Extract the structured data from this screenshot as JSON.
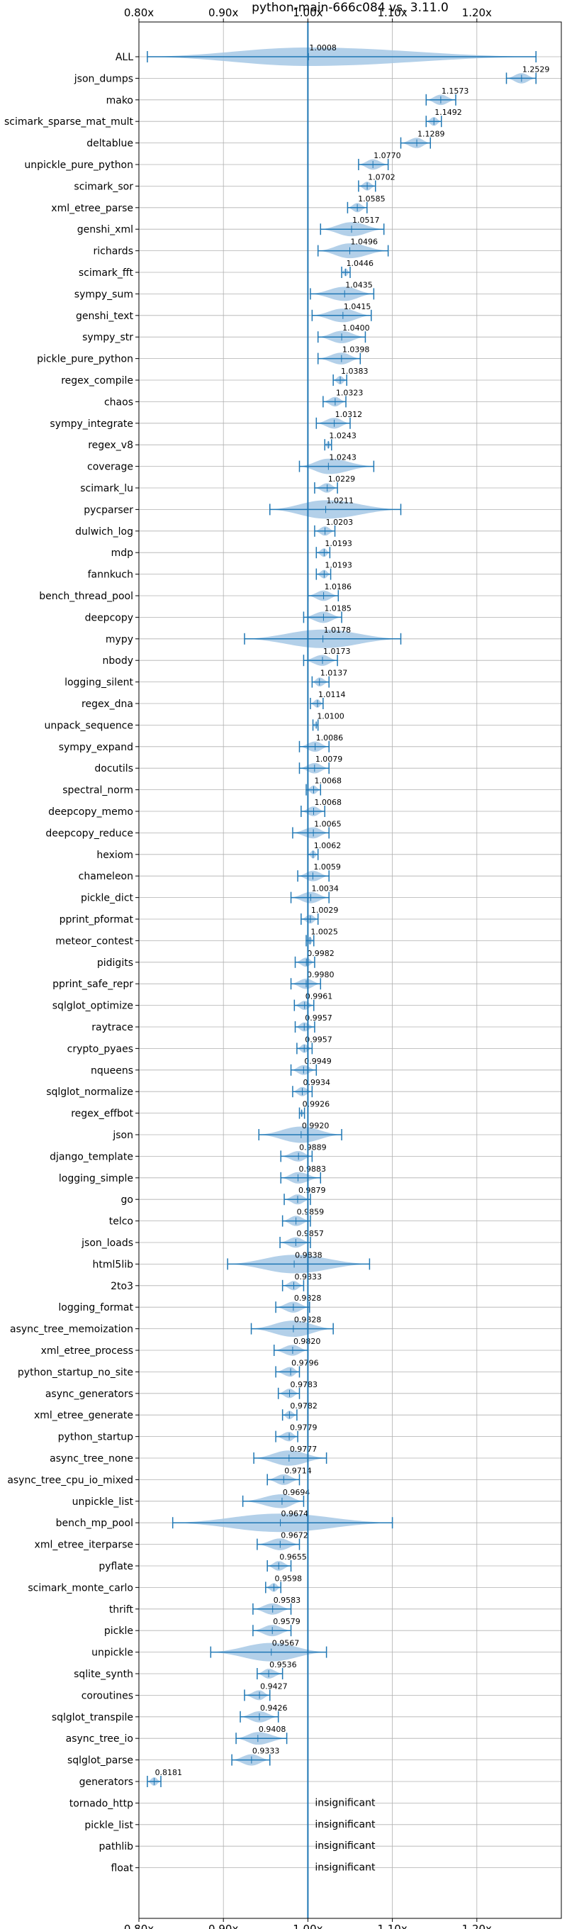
{
  "chart_data": {
    "type": "violin",
    "title": "python-main-666c084 vs. 3.11.0",
    "xlim": [
      0.8,
      1.3
    ],
    "x_ticks": [
      0.8,
      0.9,
      1.0,
      1.1,
      1.2
    ],
    "x_tick_labels": [
      "0.80x",
      "0.90x",
      "1.00x",
      "1.10x",
      "1.20x"
    ],
    "reference_x": 1.0,
    "grid": true,
    "insignificant_label": "insignificant",
    "benchmarks": [
      {
        "name": "ALL",
        "median": 1.0008,
        "min": 0.81,
        "max": 1.27,
        "significant": true
      },
      {
        "name": "json_dumps",
        "median": 1.2529,
        "min": 1.235,
        "max": 1.27,
        "significant": true
      },
      {
        "name": "mako",
        "median": 1.1573,
        "min": 1.14,
        "max": 1.175,
        "significant": true
      },
      {
        "name": "scimark_sparse_mat_mult",
        "median": 1.1492,
        "min": 1.14,
        "max": 1.158,
        "significant": true
      },
      {
        "name": "deltablue",
        "median": 1.1289,
        "min": 1.11,
        "max": 1.145,
        "significant": true
      },
      {
        "name": "unpickle_pure_python",
        "median": 1.077,
        "min": 1.06,
        "max": 1.095,
        "significant": true
      },
      {
        "name": "scimark_sor",
        "median": 1.0702,
        "min": 1.06,
        "max": 1.08,
        "significant": true
      },
      {
        "name": "xml_etree_parse",
        "median": 1.0585,
        "min": 1.047,
        "max": 1.07,
        "significant": true
      },
      {
        "name": "genshi_xml",
        "median": 1.0517,
        "min": 1.015,
        "max": 1.09,
        "significant": true
      },
      {
        "name": "richards",
        "median": 1.0496,
        "min": 1.012,
        "max": 1.095,
        "significant": true
      },
      {
        "name": "scimark_fft",
        "median": 1.0446,
        "min": 1.04,
        "max": 1.05,
        "significant": true
      },
      {
        "name": "sympy_sum",
        "median": 1.0435,
        "min": 1.003,
        "max": 1.078,
        "significant": true
      },
      {
        "name": "genshi_text",
        "median": 1.0415,
        "min": 1.005,
        "max": 1.075,
        "significant": true
      },
      {
        "name": "sympy_str",
        "median": 1.04,
        "min": 1.012,
        "max": 1.068,
        "significant": true
      },
      {
        "name": "pickle_pure_python",
        "median": 1.0398,
        "min": 1.012,
        "max": 1.062,
        "significant": true
      },
      {
        "name": "regex_compile",
        "median": 1.0383,
        "min": 1.03,
        "max": 1.046,
        "significant": true
      },
      {
        "name": "chaos",
        "median": 1.0323,
        "min": 1.018,
        "max": 1.045,
        "significant": true
      },
      {
        "name": "sympy_integrate",
        "median": 1.0312,
        "min": 1.01,
        "max": 1.05,
        "significant": true
      },
      {
        "name": "regex_v8",
        "median": 1.0243,
        "min": 1.02,
        "max": 1.028,
        "significant": true
      },
      {
        "name": "coverage",
        "median": 1.0243,
        "min": 0.99,
        "max": 1.078,
        "significant": true
      },
      {
        "name": "scimark_lu",
        "median": 1.0229,
        "min": 1.008,
        "max": 1.035,
        "significant": true
      },
      {
        "name": "pycparser",
        "median": 1.0211,
        "min": 0.955,
        "max": 1.11,
        "significant": true
      },
      {
        "name": "dulwich_log",
        "median": 1.0203,
        "min": 1.008,
        "max": 1.032,
        "significant": true
      },
      {
        "name": "mdp",
        "median": 1.0193,
        "min": 1.01,
        "max": 1.026,
        "significant": true
      },
      {
        "name": "fannkuch",
        "median": 1.0193,
        "min": 1.01,
        "max": 1.027,
        "significant": true
      },
      {
        "name": "bench_thread_pool",
        "median": 1.0186,
        "min": 1.0,
        "max": 1.036,
        "significant": true
      },
      {
        "name": "deepcopy",
        "median": 1.0185,
        "min": 0.995,
        "max": 1.04,
        "significant": true
      },
      {
        "name": "mypy",
        "median": 1.0178,
        "min": 0.925,
        "max": 1.11,
        "significant": true
      },
      {
        "name": "nbody",
        "median": 1.0173,
        "min": 0.995,
        "max": 1.035,
        "significant": true
      },
      {
        "name": "logging_silent",
        "median": 1.0137,
        "min": 1.005,
        "max": 1.025,
        "significant": true
      },
      {
        "name": "regex_dna",
        "median": 1.0114,
        "min": 1.003,
        "max": 1.018,
        "significant": true
      },
      {
        "name": "unpack_sequence",
        "median": 1.01,
        "min": 1.006,
        "max": 1.012,
        "significant": true
      },
      {
        "name": "sympy_expand",
        "median": 1.0086,
        "min": 0.99,
        "max": 1.025,
        "significant": true
      },
      {
        "name": "docutils",
        "median": 1.0079,
        "min": 0.99,
        "max": 1.025,
        "significant": true
      },
      {
        "name": "spectral_norm",
        "median": 1.0068,
        "min": 0.998,
        "max": 1.015,
        "significant": true
      },
      {
        "name": "deepcopy_memo",
        "median": 1.0068,
        "min": 0.992,
        "max": 1.02,
        "significant": true
      },
      {
        "name": "deepcopy_reduce",
        "median": 1.0065,
        "min": 0.982,
        "max": 1.025,
        "significant": true
      },
      {
        "name": "hexiom",
        "median": 1.0062,
        "min": 1.0,
        "max": 1.012,
        "significant": true
      },
      {
        "name": "chameleon",
        "median": 1.0059,
        "min": 0.988,
        "max": 1.025,
        "significant": true
      },
      {
        "name": "pickle_dict",
        "median": 1.0034,
        "min": 0.98,
        "max": 1.025,
        "significant": true
      },
      {
        "name": "pprint_pformat",
        "median": 1.0029,
        "min": 0.992,
        "max": 1.012,
        "significant": true
      },
      {
        "name": "meteor_contest",
        "median": 1.0025,
        "min": 0.998,
        "max": 1.007,
        "significant": true
      },
      {
        "name": "pidigits",
        "median": 0.9982,
        "min": 0.985,
        "max": 1.008,
        "significant": true
      },
      {
        "name": "pprint_safe_repr",
        "median": 0.998,
        "min": 0.98,
        "max": 1.015,
        "significant": true
      },
      {
        "name": "sqlglot_optimize",
        "median": 0.9961,
        "min": 0.984,
        "max": 1.007,
        "significant": true
      },
      {
        "name": "raytrace",
        "median": 0.9957,
        "min": 0.985,
        "max": 1.008,
        "significant": true
      },
      {
        "name": "crypto_pyaes",
        "median": 0.9957,
        "min": 0.987,
        "max": 1.005,
        "significant": true
      },
      {
        "name": "nqueens",
        "median": 0.9949,
        "min": 0.98,
        "max": 1.01,
        "significant": true
      },
      {
        "name": "sqlglot_normalize",
        "median": 0.9934,
        "min": 0.982,
        "max": 1.005,
        "significant": true
      },
      {
        "name": "regex_effbot",
        "median": 0.9926,
        "min": 0.99,
        "max": 0.996,
        "significant": true
      },
      {
        "name": "json",
        "median": 0.992,
        "min": 0.942,
        "max": 1.04,
        "significant": true
      },
      {
        "name": "django_template",
        "median": 0.9889,
        "min": 0.968,
        "max": 1.005,
        "significant": true
      },
      {
        "name": "logging_simple",
        "median": 0.9883,
        "min": 0.968,
        "max": 1.015,
        "significant": true
      },
      {
        "name": "go",
        "median": 0.9879,
        "min": 0.972,
        "max": 1.003,
        "significant": true
      },
      {
        "name": "telco",
        "median": 0.9859,
        "min": 0.97,
        "max": 1.003,
        "significant": true
      },
      {
        "name": "json_loads",
        "median": 0.9857,
        "min": 0.967,
        "max": 1.003,
        "significant": true
      },
      {
        "name": "html5lib",
        "median": 0.9838,
        "min": 0.905,
        "max": 1.073,
        "significant": true
      },
      {
        "name": "2to3",
        "median": 0.9833,
        "min": 0.97,
        "max": 0.995,
        "significant": true
      },
      {
        "name": "logging_format",
        "median": 0.9828,
        "min": 0.962,
        "max": 1.002,
        "significant": true
      },
      {
        "name": "async_tree_memoization",
        "median": 0.9828,
        "min": 0.933,
        "max": 1.03,
        "significant": true
      },
      {
        "name": "xml_etree_process",
        "median": 0.982,
        "min": 0.96,
        "max": 1.0,
        "significant": true
      },
      {
        "name": "python_startup_no_site",
        "median": 0.9796,
        "min": 0.962,
        "max": 0.99,
        "significant": true
      },
      {
        "name": "async_generators",
        "median": 0.9783,
        "min": 0.965,
        "max": 0.99,
        "significant": true
      },
      {
        "name": "xml_etree_generate",
        "median": 0.9782,
        "min": 0.97,
        "max": 0.987,
        "significant": true
      },
      {
        "name": "python_startup",
        "median": 0.9779,
        "min": 0.962,
        "max": 0.988,
        "significant": true
      },
      {
        "name": "async_tree_none",
        "median": 0.9777,
        "min": 0.936,
        "max": 1.022,
        "significant": true
      },
      {
        "name": "async_tree_cpu_io_mixed",
        "median": 0.9714,
        "min": 0.952,
        "max": 0.99,
        "significant": true
      },
      {
        "name": "unpickle_list",
        "median": 0.9694,
        "min": 0.923,
        "max": 0.995,
        "significant": true
      },
      {
        "name": "bench_mp_pool",
        "median": 0.9674,
        "min": 0.84,
        "max": 1.1,
        "significant": true
      },
      {
        "name": "xml_etree_iterparse",
        "median": 0.9672,
        "min": 0.94,
        "max": 0.99,
        "significant": true
      },
      {
        "name": "pyflate",
        "median": 0.9655,
        "min": 0.952,
        "max": 0.98,
        "significant": true
      },
      {
        "name": "scimark_monte_carlo",
        "median": 0.9598,
        "min": 0.95,
        "max": 0.968,
        "significant": true
      },
      {
        "name": "thrift",
        "median": 0.9583,
        "min": 0.935,
        "max": 0.98,
        "significant": true
      },
      {
        "name": "pickle",
        "median": 0.9579,
        "min": 0.935,
        "max": 0.98,
        "significant": true
      },
      {
        "name": "unpickle",
        "median": 0.9567,
        "min": 0.885,
        "max": 1.022,
        "significant": true
      },
      {
        "name": "sqlite_synth",
        "median": 0.9536,
        "min": 0.94,
        "max": 0.97,
        "significant": true
      },
      {
        "name": "coroutines",
        "median": 0.9427,
        "min": 0.925,
        "max": 0.955,
        "significant": true
      },
      {
        "name": "sqlglot_transpile",
        "median": 0.9426,
        "min": 0.92,
        "max": 0.965,
        "significant": true
      },
      {
        "name": "async_tree_io",
        "median": 0.9408,
        "min": 0.915,
        "max": 0.975,
        "significant": true
      },
      {
        "name": "sqlglot_parse",
        "median": 0.9333,
        "min": 0.91,
        "max": 0.955,
        "significant": true
      },
      {
        "name": "generators",
        "median": 0.8181,
        "min": 0.81,
        "max": 0.826,
        "significant": true
      },
      {
        "name": "tornado_http",
        "median": null,
        "min": null,
        "max": null,
        "significant": false
      },
      {
        "name": "pickle_list",
        "median": null,
        "min": null,
        "max": null,
        "significant": false
      },
      {
        "name": "pathlib",
        "median": null,
        "min": null,
        "max": null,
        "significant": false
      },
      {
        "name": "float",
        "median": null,
        "min": null,
        "max": null,
        "significant": false
      }
    ]
  },
  "colors": {
    "violin": "#a6c8e5",
    "line": "#1f77b4",
    "grid": "#b0b0b0",
    "axis": "#000000"
  }
}
